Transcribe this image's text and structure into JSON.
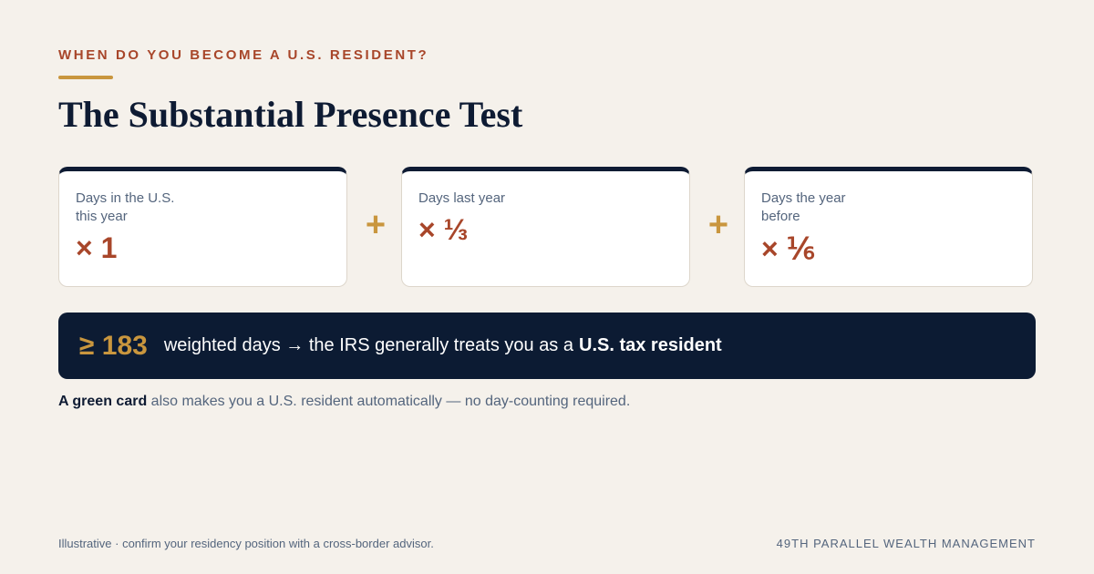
{
  "header": {
    "eyebrow": "WHEN DO YOU BECOME A U.S. RESIDENT?",
    "title": "The Substantial Presence Test"
  },
  "cards": [
    {
      "label": "Days in the U.S. this year",
      "multiplier": "× 1"
    },
    {
      "label": "Days last year",
      "multiplier": "× ⅓"
    },
    {
      "label": "Days the year before",
      "multiplier": "× ⅙"
    }
  ],
  "operators": [
    "+",
    "+"
  ],
  "banner": {
    "threshold": "≥ 183",
    "text": "weighted days → the IRS generally treats you as a",
    "emphasis": "U.S. tax resident"
  },
  "note": {
    "emphasis": "A green card",
    "text": "also makes you a U.S. resident automatically — no day-counting required."
  },
  "footer": {
    "disclaimer": "Illustrative · confirm your residency position with a cross-border advisor.",
    "brand": "49TH PARALLEL WEALTH MANAGEMENT"
  }
}
